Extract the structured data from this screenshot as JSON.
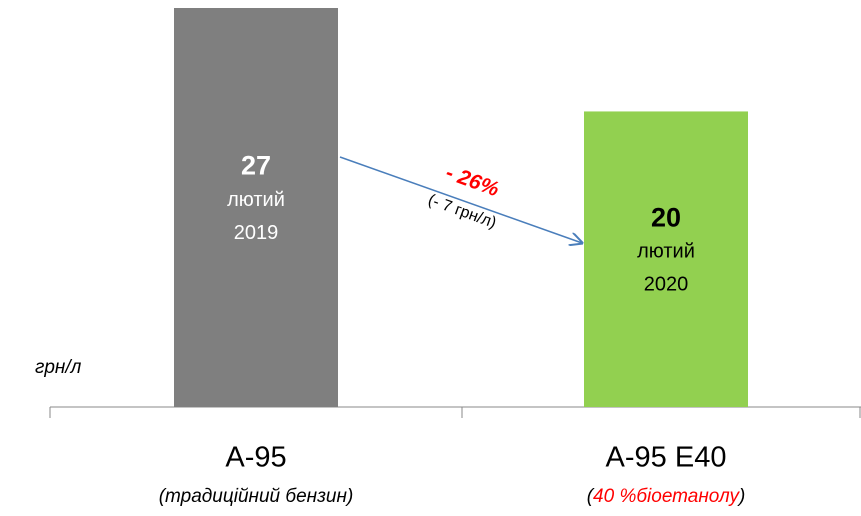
{
  "chart_data": {
    "type": "bar",
    "y_unit_label": "грн/л",
    "categories": [
      "А-95",
      "А-95 Е40"
    ],
    "category_notes": [
      [
        "(традиційний бензин)"
      ],
      [
        "(",
        "40 %біоетанолу",
        ")"
      ]
    ],
    "values": [
      27,
      20
    ],
    "bar_notes": [
      [
        "лютий",
        "2019"
      ],
      [
        "лютий",
        "2020"
      ]
    ],
    "colors": [
      "#7f7f7f",
      "#92d050"
    ],
    "ylim": [
      0,
      27
    ],
    "annotation": {
      "percent": "- 26%",
      "difference": "(- 7 грн/л)"
    }
  }
}
